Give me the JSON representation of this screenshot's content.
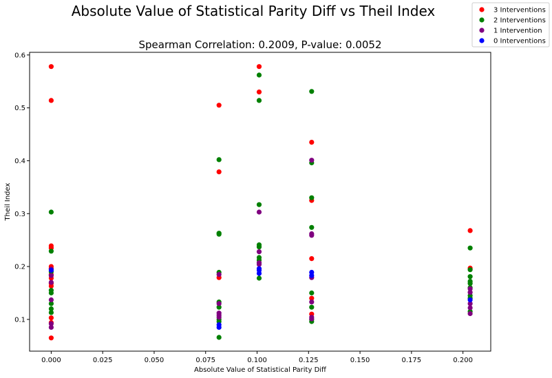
{
  "chart_data": {
    "type": "scatter",
    "title": "Absolute Value of Statistical Parity Diff vs Theil Index",
    "subtitle": "Spearman Correlation: 0.2009, P-value: 0.0052",
    "xlabel": "Absolute Value of Statistical Parity Diff",
    "ylabel": "Theil Index",
    "xlim": [
      -0.0105,
      0.2135
    ],
    "ylim": [
      0.04,
      0.605
    ],
    "xticks": [
      0.0,
      0.025,
      0.05,
      0.075,
      0.1,
      0.125,
      0.15,
      0.175,
      0.2
    ],
    "xtick_labels": [
      "0.000",
      "0.025",
      "0.050",
      "0.075",
      "0.100",
      "0.125",
      "0.150",
      "0.175",
      "0.200"
    ],
    "yticks": [
      0.1,
      0.2,
      0.3,
      0.4,
      0.5,
      0.6
    ],
    "ytick_labels": [
      "0.1",
      "0.2",
      "0.3",
      "0.4",
      "0.5",
      "0.6"
    ],
    "grid": false,
    "legend_position": "top-right",
    "series": [
      {
        "name": "3 Interventions",
        "color": "#ff0000",
        "points": [
          [
            0,
            0.578
          ],
          [
            0,
            0.514
          ],
          [
            0,
            0.239
          ],
          [
            0,
            0.235
          ],
          [
            0,
            0.2
          ],
          [
            0,
            0.196
          ],
          [
            0,
            0.185
          ],
          [
            0,
            0.178
          ],
          [
            0,
            0.168
          ],
          [
            0,
            0.163
          ],
          [
            0,
            0.103
          ],
          [
            0,
            0.094
          ],
          [
            0,
            0.065
          ],
          [
            0.0815,
            0.505
          ],
          [
            0.0815,
            0.379
          ],
          [
            0.0815,
            0.179
          ],
          [
            0.101,
            0.578
          ],
          [
            0.101,
            0.53
          ],
          [
            0.1265,
            0.435
          ],
          [
            0.1265,
            0.325
          ],
          [
            0.1265,
            0.215
          ],
          [
            0.1265,
            0.14
          ],
          [
            0.1265,
            0.11
          ],
          [
            0.2035,
            0.268
          ],
          [
            0.2035,
            0.197
          ]
        ]
      },
      {
        "name": "2 Interventions",
        "color": "#008000",
        "points": [
          [
            0,
            0.303
          ],
          [
            0,
            0.229
          ],
          [
            0,
            0.19
          ],
          [
            0,
            0.155
          ],
          [
            0,
            0.15
          ],
          [
            0,
            0.13
          ],
          [
            0,
            0.12
          ],
          [
            0,
            0.113
          ],
          [
            0.0815,
            0.402
          ],
          [
            0.0815,
            0.263
          ],
          [
            0.0815,
            0.261
          ],
          [
            0.0815,
            0.189
          ],
          [
            0.0815,
            0.133
          ],
          [
            0.0815,
            0.123
          ],
          [
            0.0815,
            0.1
          ],
          [
            0.0815,
            0.096
          ],
          [
            0.0815,
            0.066
          ],
          [
            0.101,
            0.562
          ],
          [
            0.101,
            0.514
          ],
          [
            0.101,
            0.317
          ],
          [
            0.101,
            0.241
          ],
          [
            0.101,
            0.237
          ],
          [
            0.101,
            0.217
          ],
          [
            0.101,
            0.212
          ],
          [
            0.101,
            0.178
          ],
          [
            0.1265,
            0.531
          ],
          [
            0.1265,
            0.396
          ],
          [
            0.1265,
            0.33
          ],
          [
            0.1265,
            0.274
          ],
          [
            0.1265,
            0.15
          ],
          [
            0.1265,
            0.123
          ],
          [
            0.1265,
            0.1
          ],
          [
            0.1265,
            0.096
          ],
          [
            0.2035,
            0.235
          ],
          [
            0.2035,
            0.194
          ],
          [
            0.2035,
            0.181
          ],
          [
            0.2035,
            0.172
          ],
          [
            0.2035,
            0.168
          ],
          [
            0.2035,
            0.16
          ],
          [
            0.2035,
            0.145
          ],
          [
            0.2035,
            0.14
          ],
          [
            0.2035,
            0.115
          ]
        ]
      },
      {
        "name": "1 Intervention",
        "color": "#800080",
        "points": [
          [
            0,
            0.195
          ],
          [
            0,
            0.183
          ],
          [
            0,
            0.17
          ],
          [
            0,
            0.137
          ],
          [
            0,
            0.092
          ],
          [
            0,
            0.085
          ],
          [
            0.0815,
            0.185
          ],
          [
            0.0815,
            0.13
          ],
          [
            0.0815,
            0.112
          ],
          [
            0.0815,
            0.108
          ],
          [
            0.0815,
            0.104
          ],
          [
            0.101,
            0.303
          ],
          [
            0.101,
            0.228
          ],
          [
            0.101,
            0.207
          ],
          [
            0.101,
            0.204
          ],
          [
            0.1265,
            0.401
          ],
          [
            0.1265,
            0.262
          ],
          [
            0.1265,
            0.259
          ],
          [
            0.1265,
            0.179
          ],
          [
            0.1265,
            0.133
          ],
          [
            0.1265,
            0.104
          ],
          [
            0.1265,
            0.101
          ],
          [
            0.2035,
            0.158
          ],
          [
            0.2035,
            0.151
          ],
          [
            0.2035,
            0.13
          ],
          [
            0.2035,
            0.122
          ],
          [
            0.2035,
            0.111
          ]
        ]
      },
      {
        "name": "0 Interventions",
        "color": "#0000ff",
        "points": [
          [
            0,
            0.193
          ],
          [
            0.0815,
            0.09
          ],
          [
            0.0815,
            0.085
          ],
          [
            0.101,
            0.196
          ],
          [
            0.101,
            0.193
          ],
          [
            0.101,
            0.187
          ],
          [
            0.1265,
            0.189
          ],
          [
            0.1265,
            0.183
          ],
          [
            0.2035,
            0.137
          ]
        ]
      }
    ]
  }
}
